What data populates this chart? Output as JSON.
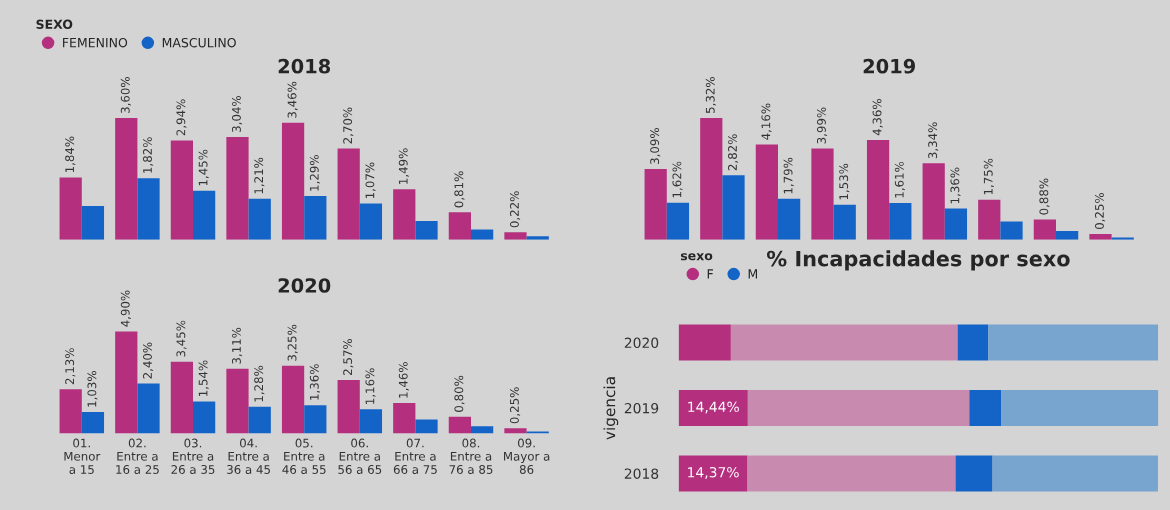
{
  "chart_data": [
    {
      "type": "bar",
      "title": "2018",
      "categories": [
        null,
        null,
        null,
        null,
        null,
        null,
        null,
        null,
        null
      ],
      "series": [
        {
          "name": "FEMENINO",
          "color": "#b4307f",
          "values": [
            1.84,
            3.6,
            2.94,
            3.04,
            3.46,
            2.7,
            1.49,
            0.81,
            0.22
          ],
          "value_labels": [
            "1,84%",
            "3,60%",
            "2,94%",
            "3,04%",
            "3,46%",
            "2,70%",
            "1,49%",
            "0,81%",
            "0,22%"
          ]
        },
        {
          "name": "MASCULINO",
          "color": "#1464c8",
          "values": [
            1.0,
            1.82,
            1.45,
            1.21,
            1.29,
            1.07,
            0.55,
            0.3,
            0.1
          ],
          "value_labels": [
            null,
            "1,82%",
            "1,45%",
            "1,21%",
            "1,29%",
            "1,07%",
            null,
            null,
            null
          ]
        }
      ],
      "legend": "top left",
      "legend_title": "SEXO",
      "tick_labels": false
    },
    {
      "type": "bar",
      "title": "2019",
      "categories": [
        null,
        null,
        null,
        null,
        null,
        null,
        null,
        null,
        null
      ],
      "series": [
        {
          "color": "#b4307f",
          "values": [
            3.09,
            5.32,
            4.16,
            3.99,
            4.36,
            3.34,
            1.75,
            0.88,
            0.25
          ],
          "value_labels": [
            "3,09%",
            "5,32%",
            "4,16%",
            "3,99%",
            "4,36%",
            "3,34%",
            "1,75%",
            "0,88%",
            "0,25%"
          ]
        },
        {
          "color": "#1464c8",
          "values": [
            1.62,
            2.82,
            1.79,
            1.53,
            1.61,
            1.36,
            0.8,
            0.38,
            0.1
          ],
          "value_labels": [
            "1,62%",
            "2,82%",
            "1,79%",
            "1,53%",
            "1,61%",
            "1,36%",
            null,
            null,
            null
          ]
        }
      ],
      "tick_labels": false
    },
    {
      "type": "bar",
      "title": "2020",
      "categories": [
        "01.\nMenor\na 15",
        "02.\nEntre a\n16 a 25",
        "03.\nEntre a\n26 a 35",
        "04.\nEntre a\n36 a 45",
        "05.\nEntre a\n46 a 55",
        "06.\nEntre a\n56 a 65",
        "07.\nEntre a\n66 a 75",
        "08.\nEntre a\n76 a 85",
        "09.\nMayor a\n86"
      ],
      "series": [
        {
          "color": "#b4307f",
          "values": [
            2.13,
            4.9,
            3.45,
            3.11,
            3.25,
            2.57,
            1.46,
            0.8,
            0.25
          ],
          "value_labels": [
            "2,13%",
            "4,90%",
            "3,45%",
            "3,11%",
            "3,25%",
            "2,57%",
            "1,46%",
            "0,80%",
            "0,25%"
          ]
        },
        {
          "color": "#1464c8",
          "values": [
            1.03,
            2.4,
            1.54,
            1.28,
            1.36,
            1.16,
            0.67,
            0.35,
            0.1
          ],
          "value_labels": [
            "1,03%",
            "2,40%",
            "1,54%",
            "1,28%",
            "1,36%",
            "1,16%",
            null,
            null,
            null
          ]
        }
      ],
      "tick_labels": "x"
    },
    {
      "type": "bar",
      "title": "% Incapacidades por sexo",
      "orientation": "horizontal",
      "stacked": true,
      "categories": [
        "2020",
        "2019",
        "2018"
      ],
      "ylabel": "vigencia",
      "legend": "top left",
      "legend_title": "sexo",
      "series": [
        {
          "name": "F",
          "color": "#b4307f",
          "values": [
            10.9,
            14.44,
            14.37
          ],
          "value_labels": [
            null,
            "14,44%",
            "14,37%"
          ]
        },
        {
          "color": "#c98aaf",
          "values": [
            47.3,
            46.2,
            43.4
          ]
        },
        {
          "name": "M",
          "color": "#1464c8",
          "values": [
            6.4,
            6.6,
            7.7
          ]
        },
        {
          "color": "#78a4d0",
          "values": [
            35.4,
            32.8,
            34.5
          ]
        }
      ]
    }
  ]
}
